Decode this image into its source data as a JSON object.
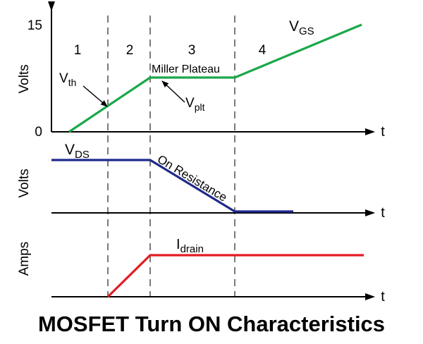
{
  "title": "MOSFET Turn ON Characteristics",
  "colors": {
    "vgs": "#1aa84a",
    "vds": "#1f2a8c",
    "idrain": "#e31b23",
    "axis": "#000000"
  },
  "phases": [
    "1",
    "2",
    "3",
    "4"
  ],
  "top_panel": {
    "ylabel": "Volts",
    "tick_top": "15",
    "tick_zero": "0",
    "xlabel": "t",
    "series_main": "V",
    "series_sub": "GS",
    "vth_main": "V",
    "vth_sub": "th",
    "vplt_main": "V",
    "vplt_sub": "plt",
    "plateau_label": "Miller Plateau"
  },
  "mid_panel": {
    "ylabel": "Volts",
    "xlabel": "t",
    "series_main": "V",
    "series_sub": "DS",
    "on_resistance_label": "On Resistance"
  },
  "bottom_panel": {
    "ylabel": "Amps",
    "xlabel": "t",
    "series_main": "I",
    "series_sub": "drain"
  }
}
